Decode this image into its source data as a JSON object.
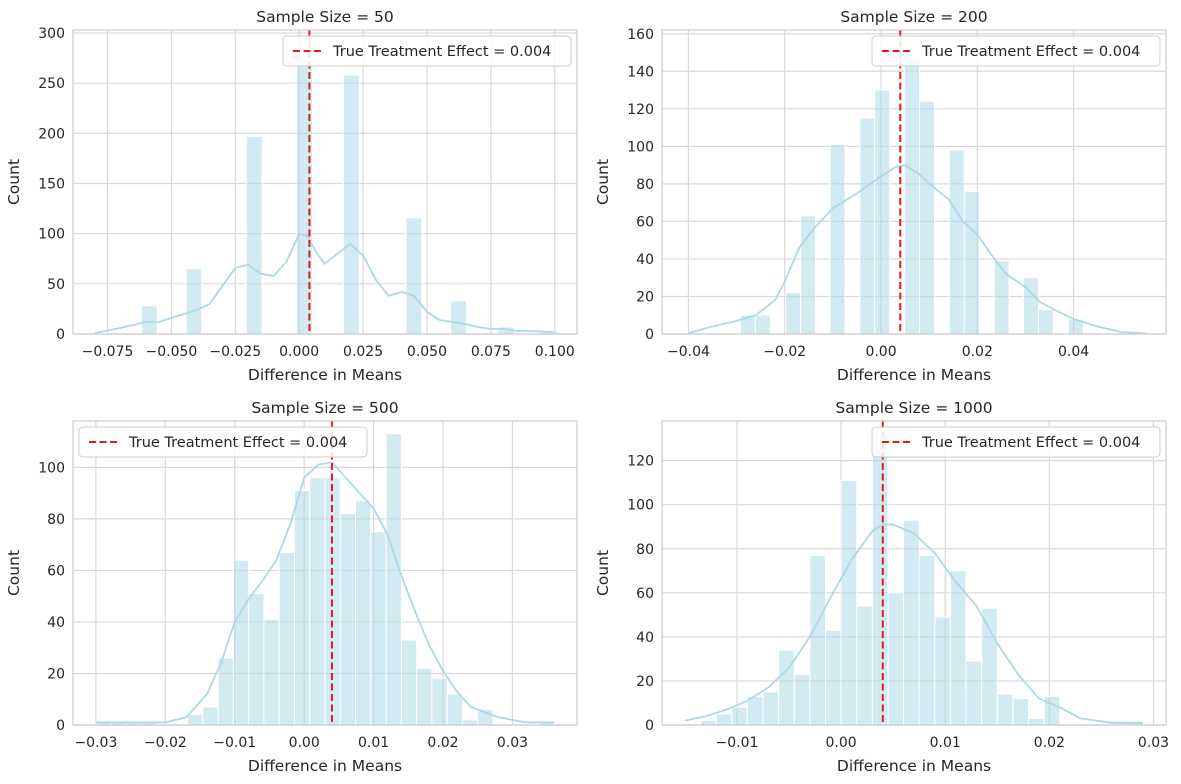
{
  "colors": {
    "bar": "#add8e6",
    "kde": "#add8e6",
    "reference_line": "#e31a1c",
    "grid": "#d9d9d9",
    "axes": "#cccccc"
  },
  "chart_data": [
    {
      "type": "bar",
      "title": "Sample Size = 50",
      "xlabel": "Difference in Means",
      "ylabel": "Count",
      "xlim": [
        -0.0885,
        0.1087
      ],
      "ylim": [
        0,
        303
      ],
      "xticks": [
        -0.075,
        -0.05,
        -0.025,
        0.0,
        0.025,
        0.05,
        0.075,
        0.1
      ],
      "xtick_labels": [
        "−0.075",
        "−0.050",
        "−0.025",
        "0.000",
        "0.025",
        "0.050",
        "0.075",
        "0.100"
      ],
      "yticks": [
        0,
        50,
        100,
        150,
        200,
        250,
        300
      ],
      "ytick_labels": [
        "0",
        "50",
        "100",
        "150",
        "200",
        "250",
        "300"
      ],
      "legend_position": "top-right",
      "reference_line": {
        "label": "True Treatment Effect = 0.004",
        "x": 0.004
      },
      "bins": [
        {
          "x0": -0.0617,
          "x1": -0.0555,
          "count": 28
        },
        {
          "x0": -0.0443,
          "x1": -0.0381,
          "count": 65
        },
        {
          "x0": -0.0207,
          "x1": -0.0145,
          "count": 197
        },
        {
          "x0": -0.0011,
          "x1": 0.0051,
          "count": 273
        },
        {
          "x0": 0.0173,
          "x1": 0.0235,
          "count": 258
        },
        {
          "x0": 0.0418,
          "x1": 0.048,
          "count": 116
        },
        {
          "x0": 0.0592,
          "x1": 0.0654,
          "count": 33
        },
        {
          "x0": 0.0778,
          "x1": 0.084,
          "count": 7
        },
        {
          "x0": 0.0952,
          "x1": 0.1014,
          "count": 3
        }
      ],
      "kde": [
        [
          -0.08,
          1
        ],
        [
          -0.07,
          6
        ],
        [
          -0.06,
          12
        ],
        [
          -0.055,
          12
        ],
        [
          -0.045,
          20
        ],
        [
          -0.04,
          24
        ],
        [
          -0.035,
          30
        ],
        [
          -0.03,
          48
        ],
        [
          -0.025,
          66
        ],
        [
          -0.02,
          69
        ],
        [
          -0.015,
          60
        ],
        [
          -0.01,
          58
        ],
        [
          -0.005,
          72
        ],
        [
          0.0,
          100
        ],
        [
          0.003,
          98
        ],
        [
          0.007,
          80
        ],
        [
          0.01,
          70
        ],
        [
          0.015,
          80
        ],
        [
          0.02,
          90
        ],
        [
          0.025,
          78
        ],
        [
          0.03,
          54
        ],
        [
          0.035,
          38
        ],
        [
          0.04,
          42
        ],
        [
          0.045,
          38
        ],
        [
          0.05,
          22
        ],
        [
          0.055,
          14
        ],
        [
          0.06,
          12
        ],
        [
          0.065,
          10
        ],
        [
          0.07,
          7
        ],
        [
          0.075,
          5
        ],
        [
          0.08,
          5
        ],
        [
          0.085,
          3
        ],
        [
          0.09,
          3
        ],
        [
          0.1,
          2
        ]
      ]
    },
    {
      "type": "bar",
      "title": "Sample Size = 200",
      "xlabel": "Difference in Means",
      "ylabel": "Count",
      "xlim": [
        -0.0455,
        0.0592
      ],
      "ylim": [
        0,
        162
      ],
      "xticks": [
        -0.04,
        -0.02,
        0.0,
        0.02,
        0.04
      ],
      "xtick_labels": [
        "−0.04",
        "−0.02",
        "0.00",
        "0.02",
        "0.04"
      ],
      "yticks": [
        0,
        20,
        40,
        60,
        80,
        100,
        120,
        140,
        160
      ],
      "ytick_labels": [
        "0",
        "20",
        "40",
        "60",
        "80",
        "100",
        "120",
        "140",
        "160"
      ],
      "legend_position": "top-right",
      "reference_line": {
        "label": "True Treatment Effect = 0.004",
        "x": 0.004
      },
      "bins": [
        {
          "x0": -0.0292,
          "x1": -0.0261,
          "count": 10
        },
        {
          "x0": -0.0261,
          "x1": -0.023,
          "count": 10
        },
        {
          "x0": -0.0198,
          "x1": -0.0167,
          "count": 22
        },
        {
          "x0": -0.0167,
          "x1": -0.0136,
          "count": 63
        },
        {
          "x0": -0.0106,
          "x1": -0.0075,
          "count": 101
        },
        {
          "x0": -0.0044,
          "x1": -0.0013,
          "count": 115
        },
        {
          "x0": -0.0013,
          "x1": 0.0018,
          "count": 130
        },
        {
          "x0": 0.0049,
          "x1": 0.008,
          "count": 147
        },
        {
          "x0": 0.008,
          "x1": 0.0111,
          "count": 124
        },
        {
          "x0": 0.0142,
          "x1": 0.0173,
          "count": 98
        },
        {
          "x0": 0.0173,
          "x1": 0.0204,
          "count": 76
        },
        {
          "x0": 0.0235,
          "x1": 0.0266,
          "count": 39
        },
        {
          "x0": 0.0296,
          "x1": 0.0327,
          "count": 30
        },
        {
          "x0": 0.0327,
          "x1": 0.0358,
          "count": 13
        },
        {
          "x0": 0.0389,
          "x1": 0.042,
          "count": 8
        }
      ],
      "kde": [
        [
          -0.04,
          0.5
        ],
        [
          -0.035,
          4
        ],
        [
          -0.03,
          7
        ],
        [
          -0.026,
          10
        ],
        [
          -0.022,
          18
        ],
        [
          -0.02,
          28
        ],
        [
          -0.017,
          46
        ],
        [
          -0.014,
          56
        ],
        [
          -0.01,
          67
        ],
        [
          -0.005,
          75
        ],
        [
          0.0,
          84
        ],
        [
          0.003,
          89
        ],
        [
          0.005,
          90
        ],
        [
          0.008,
          85
        ],
        [
          0.011,
          78
        ],
        [
          0.014,
          72
        ],
        [
          0.017,
          60
        ],
        [
          0.02,
          53
        ],
        [
          0.023,
          42
        ],
        [
          0.026,
          32
        ],
        [
          0.03,
          25
        ],
        [
          0.033,
          17
        ],
        [
          0.036,
          13
        ],
        [
          0.04,
          8
        ],
        [
          0.045,
          4
        ],
        [
          0.05,
          1
        ],
        [
          0.055,
          0.3
        ]
      ]
    },
    {
      "type": "bar",
      "title": "Sample Size = 500",
      "xlabel": "Difference in Means",
      "ylabel": "Count",
      "xlim": [
        -0.0333,
        0.0393
      ],
      "ylim": [
        0,
        118
      ],
      "xticks": [
        -0.03,
        -0.02,
        -0.01,
        0.0,
        0.01,
        0.02,
        0.03
      ],
      "xtick_labels": [
        "−0.03",
        "−0.02",
        "−0.01",
        "0.00",
        "0.01",
        "0.02",
        "0.03"
      ],
      "yticks": [
        0,
        20,
        40,
        60,
        80,
        100
      ],
      "ytick_labels": [
        "0",
        "20",
        "40",
        "60",
        "80",
        "100"
      ],
      "legend_position": "top-left",
      "reference_line": {
        "label": "True Treatment Effect = 0.004",
        "x": 0.004
      },
      "bins": [
        {
          "x0": -0.03,
          "x1": -0.0278,
          "count": 1
        },
        {
          "x0": -0.0278,
          "x1": -0.0256,
          "count": 1
        },
        {
          "x0": -0.0256,
          "x1": -0.0234,
          "count": 1
        },
        {
          "x0": -0.0234,
          "x1": -0.0212,
          "count": 1
        },
        {
          "x0": -0.0168,
          "x1": -0.0146,
          "count": 4
        },
        {
          "x0": -0.0146,
          "x1": -0.0124,
          "count": 7
        },
        {
          "x0": -0.0124,
          "x1": -0.0102,
          "count": 26
        },
        {
          "x0": -0.0102,
          "x1": -0.008,
          "count": 64
        },
        {
          "x0": -0.008,
          "x1": -0.0058,
          "count": 51
        },
        {
          "x0": -0.0058,
          "x1": -0.0036,
          "count": 41
        },
        {
          "x0": -0.0036,
          "x1": -0.0014,
          "count": 67
        },
        {
          "x0": -0.0014,
          "x1": 0.0008,
          "count": 91
        },
        {
          "x0": 0.0008,
          "x1": 0.003,
          "count": 96
        },
        {
          "x0": 0.003,
          "x1": 0.0052,
          "count": 96
        },
        {
          "x0": 0.0052,
          "x1": 0.0074,
          "count": 82
        },
        {
          "x0": 0.0074,
          "x1": 0.0096,
          "count": 87
        },
        {
          "x0": 0.0096,
          "x1": 0.0118,
          "count": 75
        },
        {
          "x0": 0.0118,
          "x1": 0.014,
          "count": 113
        },
        {
          "x0": 0.014,
          "x1": 0.0162,
          "count": 33
        },
        {
          "x0": 0.0162,
          "x1": 0.0184,
          "count": 22
        },
        {
          "x0": 0.0184,
          "x1": 0.0206,
          "count": 18
        },
        {
          "x0": 0.0206,
          "x1": 0.0228,
          "count": 12
        },
        {
          "x0": 0.0228,
          "x1": 0.025,
          "count": 2
        },
        {
          "x0": 0.025,
          "x1": 0.0272,
          "count": 6
        },
        {
          "x0": 0.0338,
          "x1": 0.036,
          "count": 1
        }
      ],
      "kde": [
        [
          -0.03,
          1
        ],
        [
          -0.025,
          1
        ],
        [
          -0.02,
          1
        ],
        [
          -0.017,
          3
        ],
        [
          -0.014,
          12
        ],
        [
          -0.012,
          24
        ],
        [
          -0.01,
          40
        ],
        [
          -0.008,
          49
        ],
        [
          -0.006,
          56
        ],
        [
          -0.004,
          64
        ],
        [
          -0.002,
          78
        ],
        [
          0.0,
          96
        ],
        [
          0.002,
          101
        ],
        [
          0.004,
          102
        ],
        [
          0.006,
          96
        ],
        [
          0.008,
          90
        ],
        [
          0.01,
          84
        ],
        [
          0.012,
          74
        ],
        [
          0.014,
          58
        ],
        [
          0.016,
          44
        ],
        [
          0.018,
          31
        ],
        [
          0.02,
          21
        ],
        [
          0.022,
          13
        ],
        [
          0.024,
          7
        ],
        [
          0.026,
          5
        ],
        [
          0.028,
          3
        ],
        [
          0.032,
          1
        ],
        [
          0.036,
          1
        ]
      ]
    },
    {
      "type": "bar",
      "title": "Sample Size = 1000",
      "xlabel": "Difference in Means",
      "ylabel": "Count",
      "xlim": [
        -0.0172,
        0.0312
      ],
      "ylim": [
        0,
        138
      ],
      "xticks": [
        -0.01,
        0.0,
        0.01,
        0.02,
        0.03
      ],
      "xtick_labels": [
        "−0.01",
        "0.00",
        "0.01",
        "0.02",
        "0.03"
      ],
      "yticks": [
        0,
        20,
        40,
        60,
        80,
        100,
        120
      ],
      "ytick_labels": [
        "0",
        "20",
        "40",
        "60",
        "80",
        "100",
        "120"
      ],
      "legend_position": "top-right",
      "reference_line": {
        "label": "True Treatment Effect = 0.004",
        "x": 0.004
      },
      "bins": [
        {
          "x0": -0.0135,
          "x1": -0.012,
          "count": 2
        },
        {
          "x0": -0.012,
          "x1": -0.0105,
          "count": 5
        },
        {
          "x0": -0.0105,
          "x1": -0.009,
          "count": 8
        },
        {
          "x0": -0.009,
          "x1": -0.0075,
          "count": 13
        },
        {
          "x0": -0.0075,
          "x1": -0.006,
          "count": 15
        },
        {
          "x0": -0.006,
          "x1": -0.0045,
          "count": 34
        },
        {
          "x0": -0.0045,
          "x1": -0.003,
          "count": 23
        },
        {
          "x0": -0.003,
          "x1": -0.0015,
          "count": 77
        },
        {
          "x0": -0.0015,
          "x1": 0.0,
          "count": 43
        },
        {
          "x0": 0.0,
          "x1": 0.0015,
          "count": 111
        },
        {
          "x0": 0.0015,
          "x1": 0.003,
          "count": 54
        },
        {
          "x0": 0.003,
          "x1": 0.0045,
          "count": 133
        },
        {
          "x0": 0.0045,
          "x1": 0.006,
          "count": 60
        },
        {
          "x0": 0.006,
          "x1": 0.0075,
          "count": 93
        },
        {
          "x0": 0.0075,
          "x1": 0.009,
          "count": 77
        },
        {
          "x0": 0.009,
          "x1": 0.0105,
          "count": 49
        },
        {
          "x0": 0.0105,
          "x1": 0.012,
          "count": 70
        },
        {
          "x0": 0.012,
          "x1": 0.0135,
          "count": 29
        },
        {
          "x0": 0.0135,
          "x1": 0.015,
          "count": 53
        },
        {
          "x0": 0.015,
          "x1": 0.0165,
          "count": 14
        },
        {
          "x0": 0.0165,
          "x1": 0.018,
          "count": 12
        },
        {
          "x0": 0.018,
          "x1": 0.0195,
          "count": 3
        },
        {
          "x0": 0.0195,
          "x1": 0.021,
          "count": 13
        },
        {
          "x0": 0.0275,
          "x1": 0.029,
          "count": 1
        }
      ],
      "kde": [
        [
          -0.015,
          2
        ],
        [
          -0.013,
          4
        ],
        [
          -0.011,
          7
        ],
        [
          -0.009,
          11
        ],
        [
          -0.007,
          17
        ],
        [
          -0.005,
          26
        ],
        [
          -0.003,
          40
        ],
        [
          -0.001,
          58
        ],
        [
          0.001,
          75
        ],
        [
          0.003,
          88
        ],
        [
          0.004,
          91
        ],
        [
          0.005,
          91
        ],
        [
          0.007,
          87
        ],
        [
          0.009,
          78
        ],
        [
          0.011,
          65
        ],
        [
          0.013,
          54
        ],
        [
          0.015,
          37
        ],
        [
          0.017,
          23
        ],
        [
          0.019,
          12
        ],
        [
          0.021,
          8
        ],
        [
          0.023,
          3
        ],
        [
          0.026,
          1
        ],
        [
          0.029,
          1
        ]
      ]
    }
  ]
}
